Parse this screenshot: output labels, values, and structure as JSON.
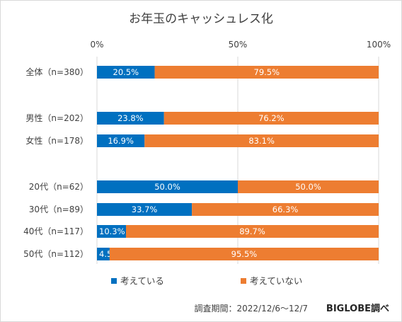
{
  "chart_data": {
    "type": "bar",
    "orientation": "horizontal",
    "stacked": true,
    "title": "お年玉のキャッシュレス化",
    "xlim": [
      0,
      100
    ],
    "x_ticks": [
      "0%",
      "50%",
      "100%"
    ],
    "grid": true,
    "legend_position": "bottom",
    "categories": [
      "全体（n=380）",
      "男性（n=202）",
      "女性（n=178）",
      "20代（n=62）",
      "30代（n=89）",
      "40代（n=117）",
      "50代（n=112）"
    ],
    "series": [
      {
        "name": "考えている",
        "color": "#0070c0",
        "values": [
          20.5,
          23.8,
          16.9,
          50.0,
          33.7,
          10.3,
          4.5
        ],
        "labels": [
          "20.5%",
          "23.8%",
          "16.9%",
          "50.0%",
          "33.7%",
          "10.3%",
          "4.5%"
        ]
      },
      {
        "name": "考えていない",
        "color": "#ed7d31",
        "values": [
          79.5,
          76.2,
          83.1,
          50.0,
          66.3,
          89.7,
          95.5
        ],
        "labels": [
          "79.5%",
          "76.2%",
          "83.1%",
          "50.0%",
          "66.3%",
          "89.7%",
          "95.5%"
        ]
      }
    ],
    "footnote": "調査期間：2022/12/6～12/7",
    "source": "BIGLOBE調べ"
  }
}
